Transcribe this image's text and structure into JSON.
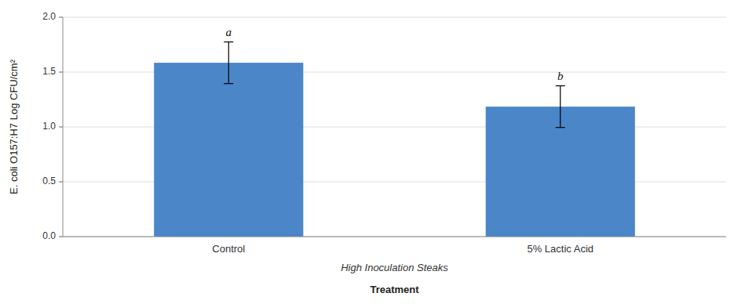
{
  "chart_data": {
    "type": "bar",
    "categories": [
      "Control",
      "5% Lactic Acid"
    ],
    "values": [
      1.585,
      1.185
    ],
    "errors": [
      0.19,
      0.19
    ],
    "color": "#4a86c8",
    "ylim": [
      0.0,
      2.0
    ],
    "yticks": [
      {
        "value": 0.0,
        "label": "0.0"
      },
      0.5,
      {
        "value": 1.0,
        "label": "1.0"
      },
      1.5,
      {
        "value": 2.0,
        "label": "2.0"
      }
    ],
    "grid": true,
    "xlabel": "Treatment",
    "ylabel": "E. coli O157:H7 Log CFU/cm²",
    "subtitle": "High Inoculation Steaks",
    "annotations": [
      "a",
      "b"
    ]
  }
}
